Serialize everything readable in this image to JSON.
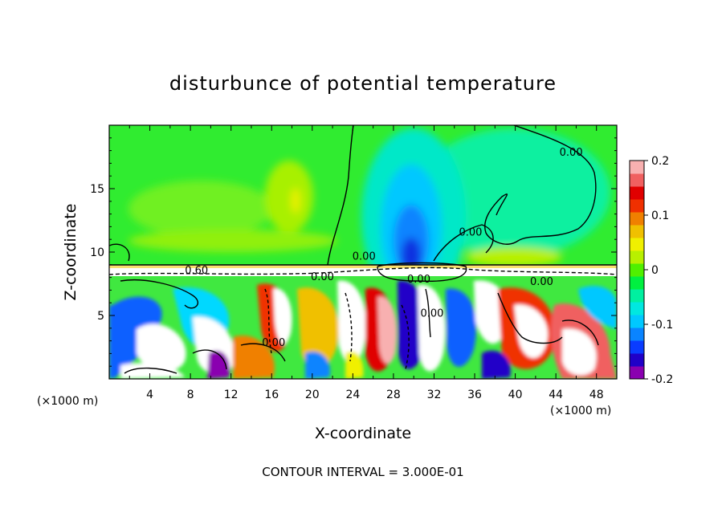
{
  "chart_data": {
    "type": "heatmap",
    "title": "disturbunce of potential temperature",
    "xlabel": "X-coordinate",
    "ylabel": "Z-coordinate",
    "x_unit_left": "(×1000 m)",
    "x_unit_right": "(×1000 m)",
    "xlim": [
      0,
      50
    ],
    "ylim": [
      0,
      20
    ],
    "x_ticks": [
      4,
      8,
      12,
      16,
      20,
      24,
      28,
      32,
      36,
      40,
      44,
      48
    ],
    "x_tick_labels": [
      "4",
      "8",
      "12",
      "16",
      "20",
      "24",
      "28",
      "32",
      "36",
      "40",
      "44",
      "48"
    ],
    "y_ticks": [
      5,
      10,
      15
    ],
    "y_tick_labels": [
      "5",
      "10",
      "15"
    ],
    "footnote": "CONTOUR INTERVAL = 3.000E-01",
    "colorbar": {
      "range": [
        -0.2,
        0.2
      ],
      "ticks": [
        -0.2,
        -0.1,
        0,
        0.1,
        0.2
      ],
      "tick_labels": [
        "-0.2",
        "-0.1",
        "0",
        "0.1",
        "0.2"
      ],
      "colors": [
        "#8a00b0",
        "#2000c8",
        "#0a3cff",
        "#0a84ff",
        "#00c8ff",
        "#00e8e0",
        "#00f0a0",
        "#00f040",
        "#50f000",
        "#b8f000",
        "#f0f000",
        "#f0c000",
        "#f08000",
        "#f03000",
        "#e00000",
        "#f06060",
        "#f8b0b0"
      ]
    },
    "contour_labels": [
      {
        "text": "0.00",
        "x": 45.5,
        "z": 17.6
      },
      {
        "text": "0.00",
        "x": 35.6,
        "z": 11.3
      },
      {
        "text": "0.00",
        "x": 25.1,
        "z": 9.4
      },
      {
        "text": "0.60",
        "x": 8.6,
        "z": 8.3
      },
      {
        "text": "0.00",
        "x": 21.0,
        "z": 7.8
      },
      {
        "text": "0.00",
        "x": 30.5,
        "z": 7.6
      },
      {
        "text": "0.00",
        "x": 42.6,
        "z": 7.4
      },
      {
        "text": "0.00",
        "x": 31.8,
        "z": 4.9
      },
      {
        "text": "0.00",
        "x": 16.2,
        "z": 2.6
      }
    ]
  }
}
